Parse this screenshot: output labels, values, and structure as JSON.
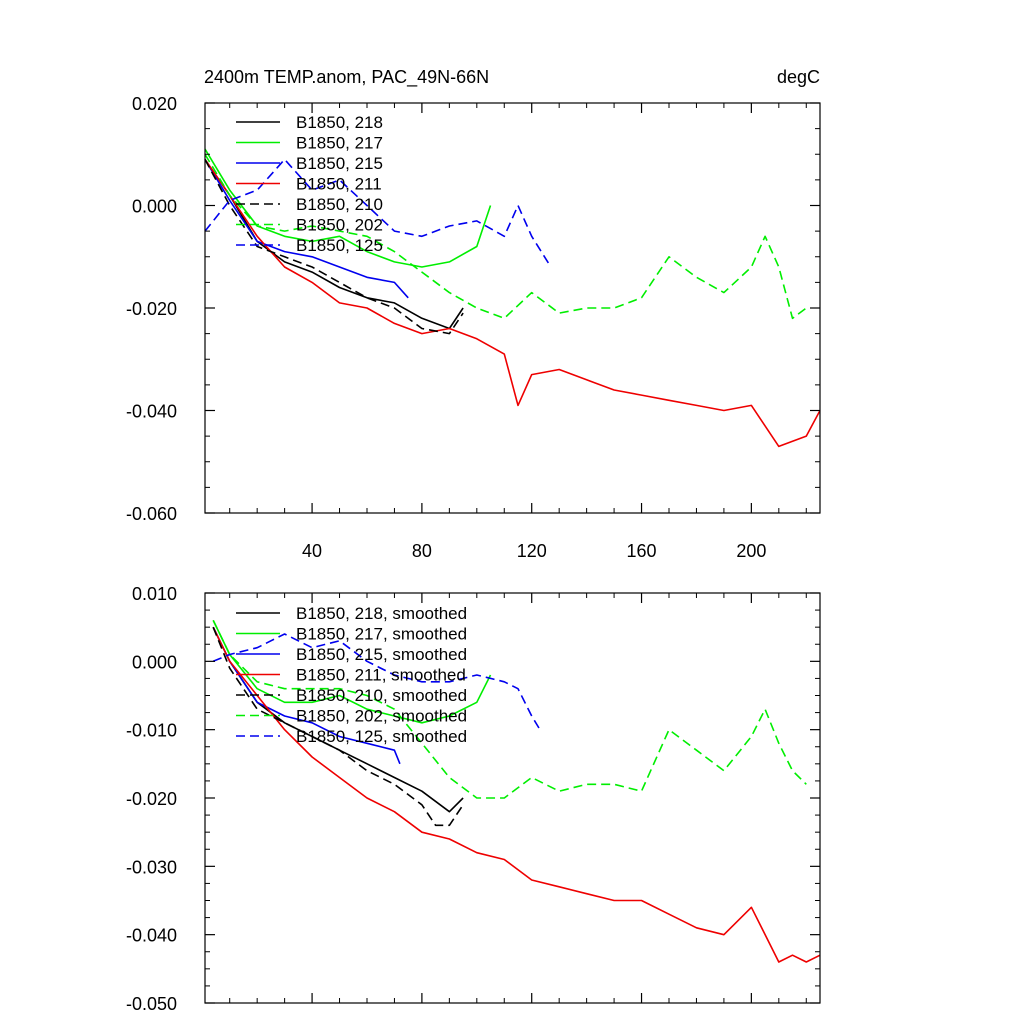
{
  "figure": {
    "title": "2400m TEMP.anom, PAC_49N-66N",
    "units": "degC"
  },
  "series_styles": [
    {
      "label": "B1850, 218",
      "color": "#000000",
      "dash": false
    },
    {
      "label": "B1850, 217",
      "color": "#00ee00",
      "dash": false
    },
    {
      "label": "B1850, 215",
      "color": "#0000ee",
      "dash": false
    },
    {
      "label": "B1850, 211",
      "color": "#ee0000",
      "dash": false
    },
    {
      "label": "B1850, 210",
      "color": "#000000",
      "dash": true
    },
    {
      "label": "B1850, 202",
      "color": "#00ee00",
      "dash": true
    },
    {
      "label": "B1850, 125",
      "color": "#0000ee",
      "dash": true
    }
  ],
  "chart_data": [
    {
      "type": "line",
      "title": "2400m TEMP.anom, PAC_49N-66N",
      "units": "degC",
      "xlim": [
        1,
        225
      ],
      "ylim": [
        -0.06,
        0.02
      ],
      "x_ticks": [
        40,
        80,
        120,
        160,
        200
      ],
      "y_ticks": [
        "0.020",
        "0.000",
        "-0.020",
        "-0.040",
        "-0.060"
      ],
      "y_tick_values": [
        0.02,
        0.0,
        -0.02,
        -0.04,
        -0.06
      ],
      "legend_position": "top-left",
      "series": [
        {
          "name": "B1850, 218",
          "x": [
            1,
            10,
            20,
            30,
            40,
            50,
            60,
            70,
            80,
            90,
            95
          ],
          "y": [
            0.009,
            0.002,
            -0.007,
            -0.011,
            -0.013,
            -0.016,
            -0.018,
            -0.019,
            -0.022,
            -0.024,
            -0.02
          ]
        },
        {
          "name": "B1850, 217",
          "x": [
            1,
            10,
            20,
            30,
            40,
            50,
            60,
            70,
            80,
            90,
            100,
            105
          ],
          "y": [
            0.011,
            0.003,
            -0.004,
            -0.006,
            -0.007,
            -0.006,
            -0.009,
            -0.011,
            -0.012,
            -0.011,
            -0.008,
            0.0
          ]
        },
        {
          "name": "B1850, 215",
          "x": [
            1,
            10,
            20,
            30,
            40,
            50,
            60,
            70,
            75
          ],
          "y": [
            0.009,
            0.001,
            -0.007,
            -0.009,
            -0.01,
            -0.012,
            -0.014,
            -0.015,
            -0.018
          ]
        },
        {
          "name": "B1850, 211",
          "x": [
            1,
            10,
            20,
            30,
            40,
            50,
            60,
            70,
            80,
            90,
            100,
            110,
            115,
            120,
            130,
            140,
            150,
            160,
            170,
            180,
            190,
            200,
            210,
            220,
            225
          ],
          "y": [
            0.009,
            0.002,
            -0.006,
            -0.012,
            -0.015,
            -0.019,
            -0.02,
            -0.023,
            -0.025,
            -0.024,
            -0.026,
            -0.029,
            -0.039,
            -0.033,
            -0.032,
            -0.034,
            -0.036,
            -0.037,
            -0.038,
            -0.039,
            -0.04,
            -0.039,
            -0.047,
            -0.045,
            -0.04
          ]
        },
        {
          "name": "B1850, 210",
          "x": [
            1,
            10,
            20,
            30,
            40,
            50,
            60,
            70,
            80,
            90,
            95
          ],
          "y": [
            0.009,
            0.0,
            -0.008,
            -0.01,
            -0.012,
            -0.015,
            -0.018,
            -0.02,
            -0.024,
            -0.025,
            -0.021
          ]
        },
        {
          "name": "B1850, 202",
          "x": [
            1,
            10,
            20,
            30,
            40,
            50,
            60,
            70,
            80,
            90,
            100,
            110,
            120,
            130,
            140,
            150,
            160,
            170,
            180,
            190,
            200,
            205,
            210,
            215,
            220
          ],
          "y": [
            0.01,
            0.002,
            -0.004,
            -0.005,
            -0.004,
            -0.005,
            -0.006,
            -0.009,
            -0.013,
            -0.017,
            -0.02,
            -0.022,
            -0.017,
            -0.021,
            -0.02,
            -0.02,
            -0.018,
            -0.01,
            -0.014,
            -0.017,
            -0.012,
            -0.006,
            -0.012,
            -0.022,
            -0.02
          ]
        },
        {
          "name": "B1850, 125",
          "x": [
            1,
            10,
            20,
            25,
            30,
            40,
            50,
            60,
            70,
            80,
            90,
            100,
            110,
            115,
            120,
            127
          ],
          "y": [
            -0.005,
            0.001,
            0.003,
            0.006,
            0.009,
            0.003,
            0.005,
            0.0,
            -0.005,
            -0.006,
            -0.004,
            -0.003,
            -0.006,
            0.0,
            -0.006,
            -0.012
          ]
        }
      ]
    },
    {
      "type": "line",
      "xlim": [
        1,
        225
      ],
      "ylim": [
        -0.05,
        0.01
      ],
      "x_ticks": [
        40,
        80,
        120,
        160,
        200
      ],
      "y_ticks": [
        "0.010",
        "0.000",
        "-0.010",
        "-0.020",
        "-0.030",
        "-0.040",
        "-0.050"
      ],
      "y_tick_values": [
        0.01,
        0.0,
        -0.01,
        -0.02,
        -0.03,
        -0.04,
        -0.05
      ],
      "legend_position": "top-left",
      "series": [
        {
          "name": "B1850, 218, smoothed",
          "x": [
            4,
            10,
            20,
            30,
            40,
            50,
            60,
            70,
            80,
            90,
            95
          ],
          "y": [
            0.005,
            0.0,
            -0.006,
            -0.009,
            -0.011,
            -0.013,
            -0.015,
            -0.017,
            -0.019,
            -0.022,
            -0.02
          ]
        },
        {
          "name": "B1850, 217, smoothed",
          "x": [
            4,
            10,
            20,
            30,
            40,
            50,
            60,
            70,
            80,
            90,
            100,
            105
          ],
          "y": [
            0.006,
            0.001,
            -0.004,
            -0.006,
            -0.006,
            -0.005,
            -0.007,
            -0.008,
            -0.009,
            -0.008,
            -0.006,
            -0.002
          ]
        },
        {
          "name": "B1850, 215, smoothed",
          "x": [
            4,
            10,
            20,
            30,
            40,
            50,
            60,
            70,
            72
          ],
          "y": [
            0.005,
            0.0,
            -0.006,
            -0.008,
            -0.009,
            -0.011,
            -0.012,
            -0.013,
            -0.015
          ]
        },
        {
          "name": "B1850, 211, smoothed",
          "x": [
            4,
            10,
            20,
            30,
            40,
            50,
            60,
            70,
            80,
            90,
            100,
            110,
            120,
            130,
            140,
            150,
            160,
            170,
            180,
            190,
            200,
            210,
            215,
            220,
            225
          ],
          "y": [
            0.005,
            0.0,
            -0.005,
            -0.01,
            -0.014,
            -0.017,
            -0.02,
            -0.022,
            -0.025,
            -0.026,
            -0.028,
            -0.029,
            -0.032,
            -0.033,
            -0.034,
            -0.035,
            -0.035,
            -0.037,
            -0.039,
            -0.04,
            -0.036,
            -0.044,
            -0.043,
            -0.044,
            -0.043
          ]
        },
        {
          "name": "B1850, 210, smoothed",
          "x": [
            4,
            10,
            20,
            30,
            40,
            50,
            60,
            70,
            80,
            85,
            90,
            95
          ],
          "y": [
            0.005,
            -0.001,
            -0.007,
            -0.009,
            -0.011,
            -0.013,
            -0.016,
            -0.018,
            -0.021,
            -0.024,
            -0.024,
            -0.021
          ]
        },
        {
          "name": "B1850, 202, smoothed",
          "x": [
            4,
            10,
            20,
            30,
            40,
            50,
            60,
            70,
            80,
            90,
            100,
            110,
            120,
            130,
            140,
            150,
            160,
            170,
            180,
            190,
            200,
            205,
            210,
            215,
            220
          ],
          "y": [
            0.006,
            0.001,
            -0.003,
            -0.004,
            -0.004,
            -0.004,
            -0.005,
            -0.007,
            -0.012,
            -0.017,
            -0.02,
            -0.02,
            -0.017,
            -0.019,
            -0.018,
            -0.018,
            -0.019,
            -0.01,
            -0.013,
            -0.016,
            -0.011,
            -0.007,
            -0.012,
            -0.016,
            -0.018
          ]
        },
        {
          "name": "B1850, 125, smoothed",
          "x": [
            4,
            10,
            20,
            25,
            30,
            40,
            50,
            60,
            70,
            80,
            90,
            100,
            110,
            115,
            120,
            123
          ],
          "y": [
            0.0,
            0.001,
            0.002,
            0.003,
            0.004,
            0.002,
            0.003,
            0.0,
            -0.002,
            -0.003,
            -0.003,
            -0.002,
            -0.003,
            -0.004,
            -0.008,
            -0.01
          ]
        }
      ]
    }
  ]
}
